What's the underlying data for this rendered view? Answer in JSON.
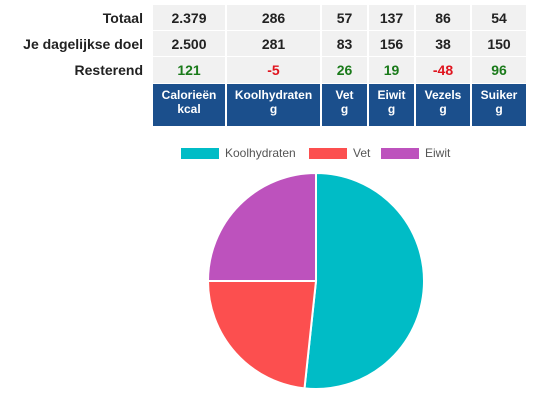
{
  "table": {
    "rows": [
      {
        "label": "Totaal",
        "values": [
          "2.379",
          "286",
          "57",
          "137",
          "86",
          "54"
        ]
      },
      {
        "label": "Je dagelijkse doel",
        "values": [
          "2.500",
          "281",
          "83",
          "156",
          "38",
          "150"
        ]
      },
      {
        "label": "Resterend",
        "values": [
          "121",
          "-5",
          "26",
          "19",
          "-48",
          "96"
        ],
        "status": [
          "pos",
          "neg",
          "pos",
          "pos",
          "neg",
          "pos"
        ]
      }
    ],
    "columns": [
      {
        "name": "Calorieën",
        "unit": "kcal"
      },
      {
        "name": "Koolhydraten",
        "unit": "g"
      },
      {
        "name": "Vet",
        "unit": "g"
      },
      {
        "name": "Eiwit",
        "unit": "g"
      },
      {
        "name": "Vezels",
        "unit": "g"
      },
      {
        "name": "Suiker",
        "unit": "g"
      }
    ]
  },
  "colors": {
    "header_bg": "#1b4f8c",
    "positive": "#1a7a1a",
    "negative": "#e0141e"
  },
  "chart_data": {
    "type": "pie",
    "legend_position": "top",
    "labels": [
      "Koolhydraten",
      "Vet",
      "Eiwit"
    ],
    "values": [
      51.7,
      23.3,
      25.0
    ],
    "colors": [
      "#00bcc6",
      "#fc4f4f",
      "#bd52bd"
    ]
  }
}
